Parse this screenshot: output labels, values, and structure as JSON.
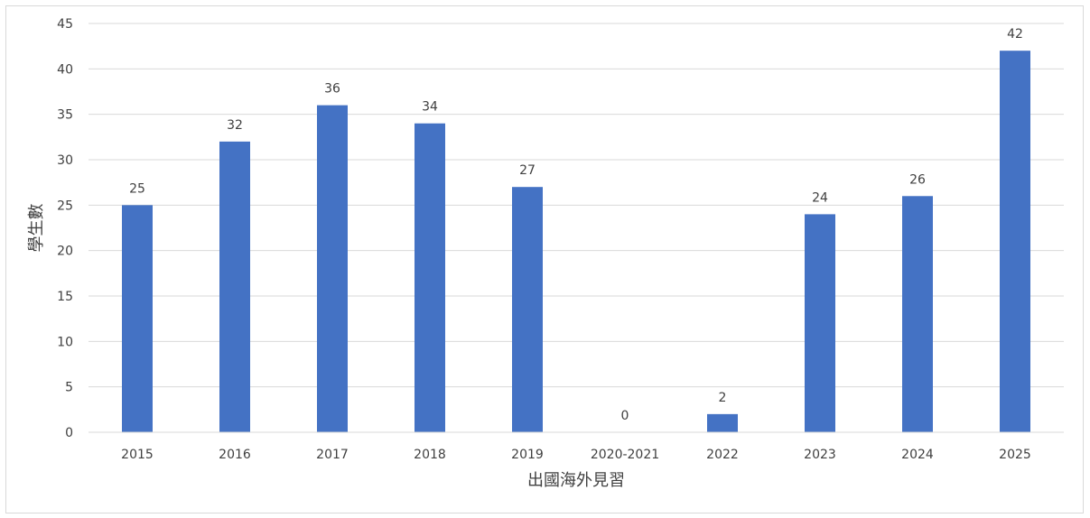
{
  "chart_data": {
    "type": "bar",
    "categories": [
      "2015",
      "2016",
      "2017",
      "2018",
      "2019",
      "2020-2021",
      "2022",
      "2023",
      "2024",
      "2025"
    ],
    "values": [
      25,
      32,
      36,
      34,
      27,
      0,
      2,
      24,
      26,
      42
    ],
    "xlabel": "出國海外見習",
    "ylabel": "學生數",
    "ylim": [
      0,
      45
    ],
    "yticks": [
      0,
      5,
      10,
      15,
      20,
      25,
      30,
      35,
      40,
      45
    ],
    "grid": true,
    "data_labels": true,
    "legend": "none",
    "bar_color": "#4472C4",
    "grid_color": "#d9d9d9"
  }
}
